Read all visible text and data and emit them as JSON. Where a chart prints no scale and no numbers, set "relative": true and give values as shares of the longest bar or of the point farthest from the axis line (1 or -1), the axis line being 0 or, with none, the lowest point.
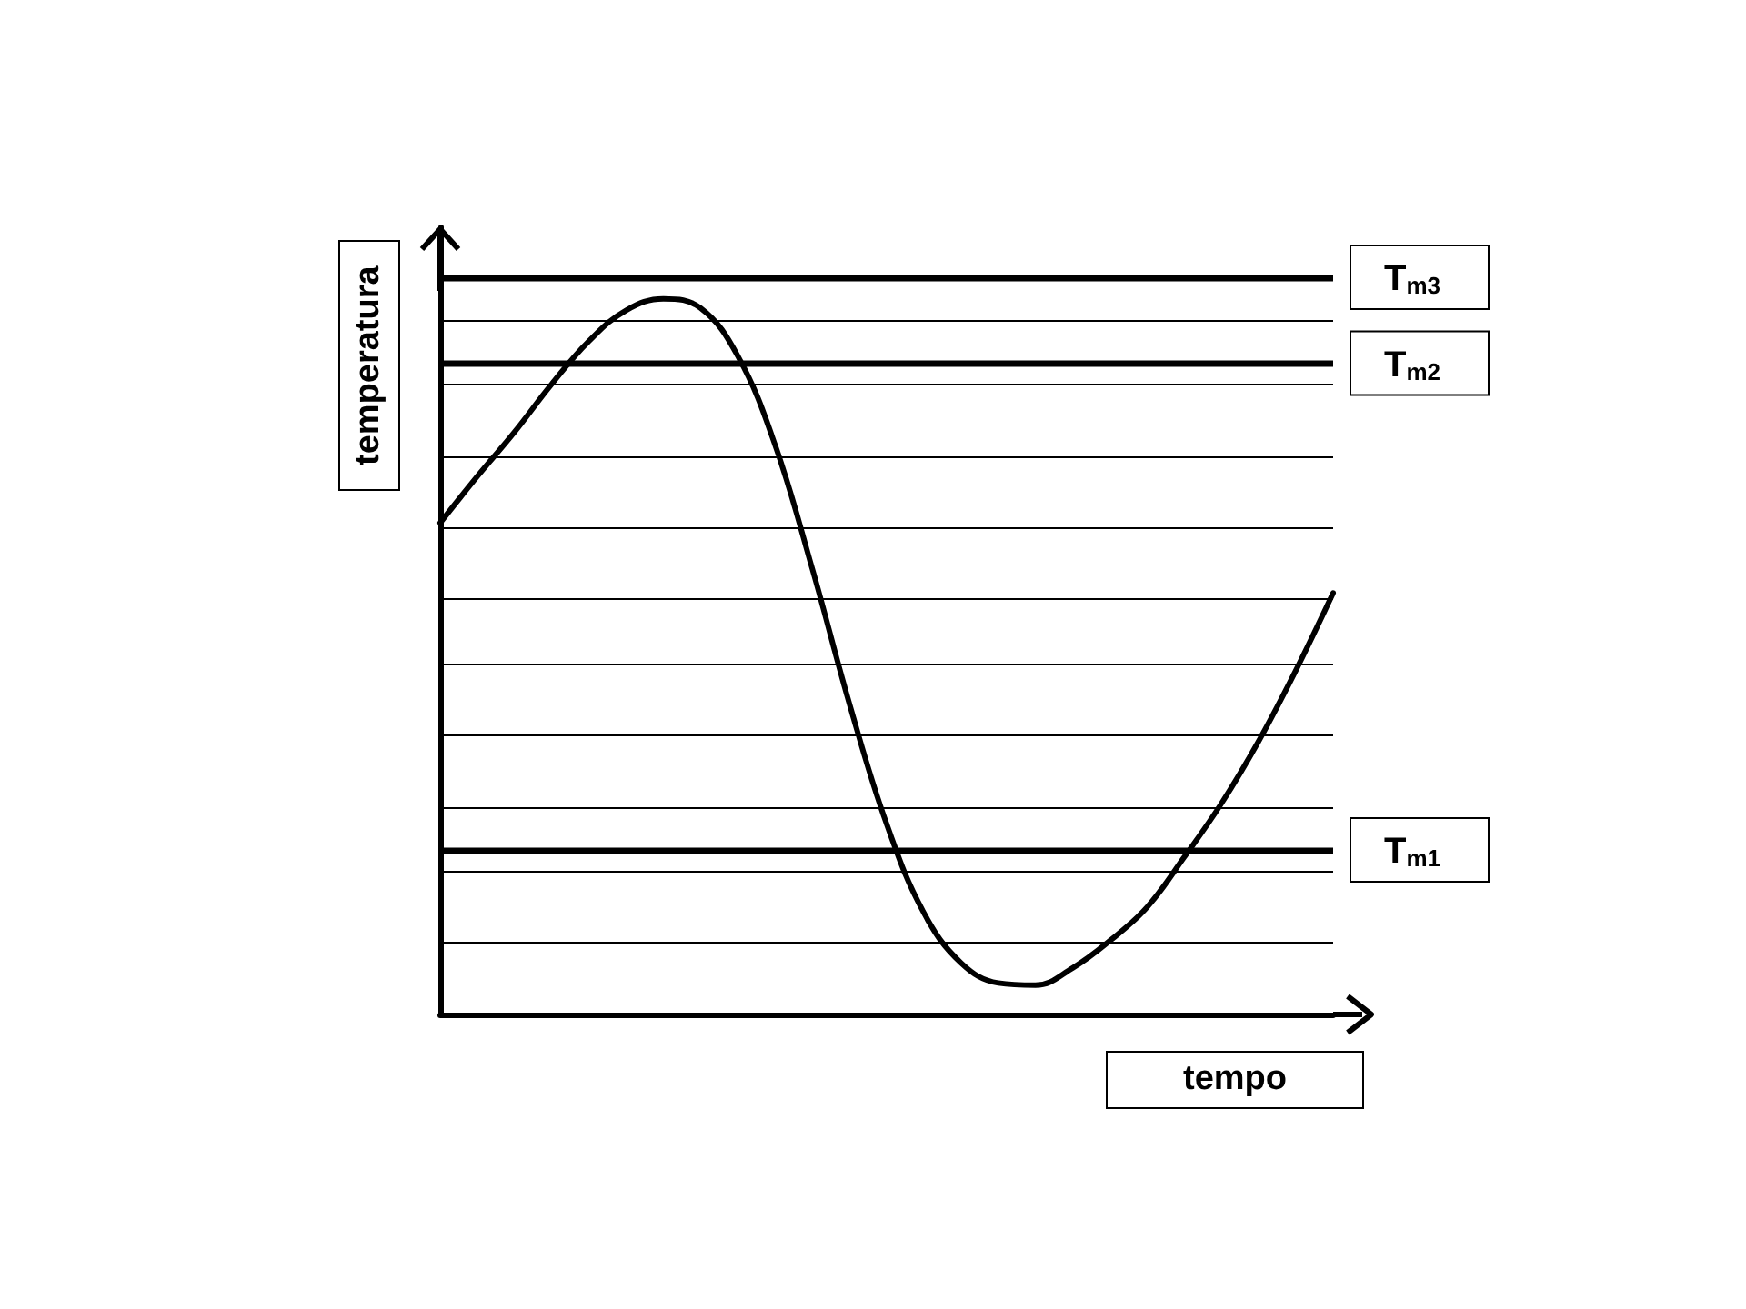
{
  "chart_data": {
    "type": "line",
    "relative": true,
    "xlabel": "tempo",
    "ylabel": "temperatura",
    "categories": [
      null,
      null,
      null,
      null,
      null,
      null,
      null,
      null,
      null,
      null,
      null,
      null,
      null,
      null,
      null,
      null,
      null,
      null,
      null,
      null,
      null,
      null,
      null,
      null,
      null
    ],
    "series": [
      {
        "color": "#000000",
        "values": [
          0.687,
          0.752,
          0.814,
          0.881,
          0.941,
          0.984,
          1,
          0.987,
          0.92,
          0.796,
          0.623,
          0.434,
          0.266,
          0.142,
          0.072,
          0.044,
          0.041,
          0.065,
          0.103,
          0.15,
          0.22,
          0.295,
          0.382,
          0.481,
          0.589
        ]
      }
    ],
    "marker": "none",
    "line_style": "solid",
    "ref_lines": [
      {
        "axis": "y",
        "value": 0.097,
        "label": null
      },
      {
        "axis": "y",
        "value": 0.199,
        "label": null
      },
      {
        "axis": "y",
        "value": 0.292,
        "label": null
      },
      {
        "axis": "y",
        "value": 0.39,
        "label": null
      },
      {
        "axis": "y",
        "value": 0.487,
        "label": null
      },
      {
        "axis": "y",
        "value": 0.584,
        "label": null
      },
      {
        "axis": "y",
        "value": 0.682,
        "label": null
      },
      {
        "axis": "y",
        "value": 0.779,
        "label": null
      },
      {
        "axis": "y",
        "value": 0.877,
        "label": null
      },
      {
        "axis": "y",
        "value": 0.969,
        "label": null
      },
      {
        "axis": "y",
        "value": 0.225,
        "label": "T$_{m1}$"
      },
      {
        "axis": "y",
        "value": 0.907,
        "label": "T$_{m2}$"
      },
      {
        "axis": "y",
        "value": 1.028,
        "label": "T$_{m3}$"
      }
    ]
  }
}
